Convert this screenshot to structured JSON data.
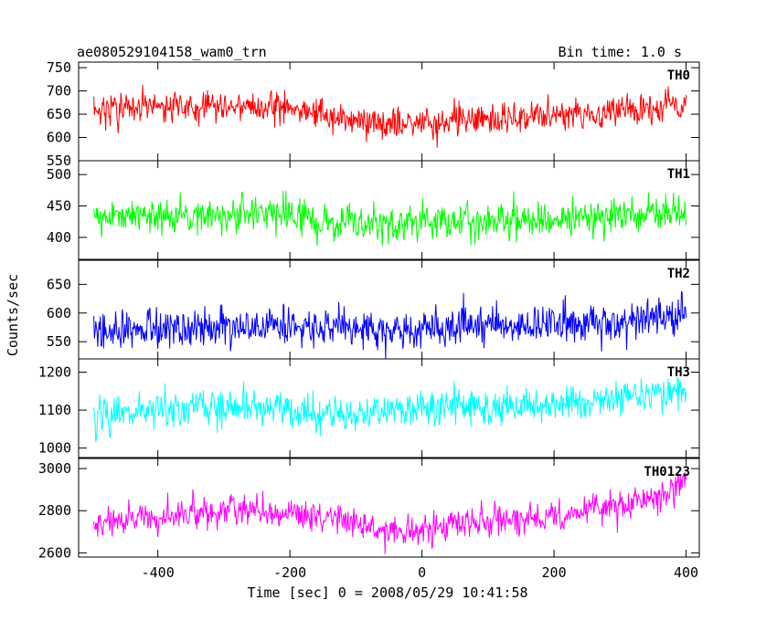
{
  "chart_data": {
    "type": "line",
    "title": "ae080529104158_wam0_trn",
    "subtitle": "Bin time: 1.0 s",
    "xlabel": "Time [sec] 0 = 2008/05/29 10:41:58",
    "ylabel": "Counts/sec",
    "xlim": [
      -520,
      420
    ],
    "xticks": [
      -400,
      -200,
      0,
      200,
      400
    ],
    "x_start": -497,
    "x_end": 400,
    "bin": 1.0,
    "grid": false,
    "panels": [
      {
        "name": "TH0",
        "color": "#ff0000",
        "ylim": [
          550,
          762
        ],
        "yticks": [
          550,
          600,
          650,
          700,
          750
        ],
        "trend": [
          [
            -497,
            663
          ],
          [
            -350,
            668
          ],
          [
            -250,
            668
          ],
          [
            -150,
            650
          ],
          [
            -80,
            630
          ],
          [
            0,
            630
          ],
          [
            100,
            640
          ],
          [
            200,
            645
          ],
          [
            300,
            660
          ],
          [
            400,
            670
          ]
        ],
        "noise": 25
      },
      {
        "name": "TH1",
        "color": "#00ff00",
        "ylim": [
          365,
          522
        ],
        "yticks": [
          400,
          450,
          500
        ],
        "trend": [
          [
            -497,
            430
          ],
          [
            -250,
            440
          ],
          [
            -100,
            420
          ],
          [
            0,
            425
          ],
          [
            200,
            430
          ],
          [
            400,
            440
          ]
        ],
        "noise": 22
      },
      {
        "name": "TH2",
        "color": "#0000ff",
        "ylim": [
          520,
          692
        ],
        "yticks": [
          550,
          600,
          650
        ],
        "trend": [
          [
            -497,
            575
          ],
          [
            -200,
            575
          ],
          [
            0,
            572
          ],
          [
            200,
            580
          ],
          [
            300,
            585
          ],
          [
            400,
            600
          ]
        ],
        "noise": 24
      },
      {
        "name": "TH3",
        "color": "#00ffff",
        "ylim": [
          975,
          1235
        ],
        "yticks": [
          1000,
          1100,
          1200
        ],
        "trend": [
          [
            -497,
            1085
          ],
          [
            -300,
            1110
          ],
          [
            -100,
            1090
          ],
          [
            0,
            1105
          ],
          [
            200,
            1115
          ],
          [
            300,
            1135
          ],
          [
            400,
            1150
          ]
        ],
        "noise": 35
      },
      {
        "name": "TH0123",
        "color": "#ff00ff",
        "ylim": [
          2580,
          3048
        ],
        "yticks": [
          2600,
          2800,
          3000
        ],
        "trend": [
          [
            -497,
            2740
          ],
          [
            -300,
            2800
          ],
          [
            -200,
            2800
          ],
          [
            -100,
            2740
          ],
          [
            -50,
            2700
          ],
          [
            0,
            2710
          ],
          [
            100,
            2750
          ],
          [
            200,
            2770
          ],
          [
            300,
            2830
          ],
          [
            400,
            2920
          ]
        ],
        "noise": 55
      }
    ]
  }
}
